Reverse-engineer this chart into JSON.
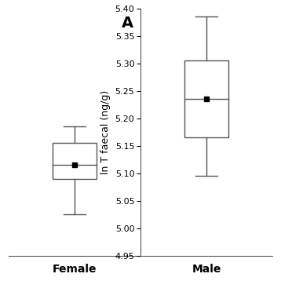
{
  "panel_label": "A",
  "ylabel": "ln T faecal (ng/g)",
  "female_label": "Female",
  "male_label": "Male",
  "female_box": {
    "whislo": 5.025,
    "q1": 5.09,
    "med": 5.115,
    "q3": 5.155,
    "whishi": 5.185,
    "mean": 5.115,
    "fliers": []
  },
  "male_box": {
    "whislo": 5.095,
    "q1": 5.165,
    "med": 5.235,
    "q3": 5.305,
    "whishi": 5.385,
    "mean": 5.235,
    "fliers": []
  },
  "ylim": [
    4.95,
    5.4
  ],
  "yticks": [
    4.95,
    5.0,
    5.05,
    5.1,
    5.15,
    5.2,
    5.25,
    5.3,
    5.35,
    5.4
  ],
  "line_color": "#555555",
  "mean_marker": "s",
  "mean_color": "black",
  "mean_size": 4,
  "panel_fontsize": 14,
  "ylabel_fontsize": 9,
  "tick_fontsize": 8,
  "xlabel_fontsize": 10,
  "box_width": 0.5,
  "cap_ratio": 0.5,
  "lw": 1.0
}
